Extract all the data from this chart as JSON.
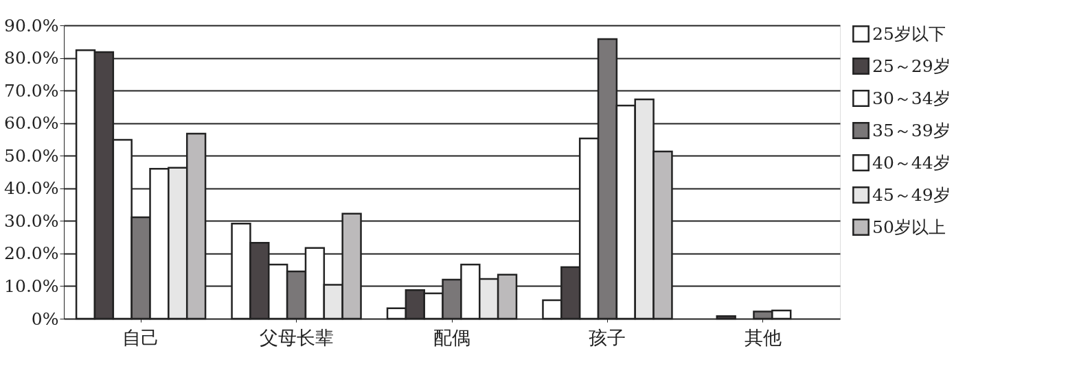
{
  "chart_data": {
    "type": "bar",
    "categories": [
      "自己",
      "父母长辈",
      "配偶",
      "孩子",
      "其他"
    ],
    "series": [
      {
        "name": "25岁以下",
        "color": "#ffffff",
        "values": [
          82.4,
          29.2,
          3.2,
          5.7,
          null
        ]
      },
      {
        "name": "25～29岁",
        "color": "#4a4446",
        "values": [
          81.8,
          23.3,
          8.8,
          15.8,
          0.8
        ]
      },
      {
        "name": "30～34岁",
        "color": "#ffffff",
        "values": [
          54.9,
          16.6,
          7.8,
          55.3,
          null
        ]
      },
      {
        "name": "35～39岁",
        "color": "#7a7778",
        "values": [
          31.1,
          14.5,
          12.0,
          85.8,
          2.2
        ]
      },
      {
        "name": "40～44岁",
        "color": "#ffffff",
        "values": [
          46.0,
          21.7,
          16.6,
          65.4,
          2.5
        ]
      },
      {
        "name": "45～49岁",
        "color": "#e6e6e6",
        "values": [
          46.3,
          10.4,
          12.2,
          67.3,
          null
        ]
      },
      {
        "name": "50岁以上",
        "color": "#bcbabb",
        "values": [
          56.8,
          32.2,
          13.5,
          51.3,
          null
        ]
      }
    ],
    "ylim": [
      0,
      90
    ],
    "yticks": [
      {
        "value": 0,
        "label": "0%"
      },
      {
        "value": 10,
        "label": "10.0%"
      },
      {
        "value": 20,
        "label": "20.0%"
      },
      {
        "value": 30,
        "label": "30.0%"
      },
      {
        "value": 40,
        "label": "40.0%"
      },
      {
        "value": 50,
        "label": "50.0%"
      },
      {
        "value": 60,
        "label": "60.0%"
      },
      {
        "value": 70,
        "label": "70.0%"
      },
      {
        "value": 80,
        "label": "80.0%"
      },
      {
        "value": 90,
        "label": "90.0%"
      }
    ],
    "grid": "y",
    "legend": "right"
  }
}
